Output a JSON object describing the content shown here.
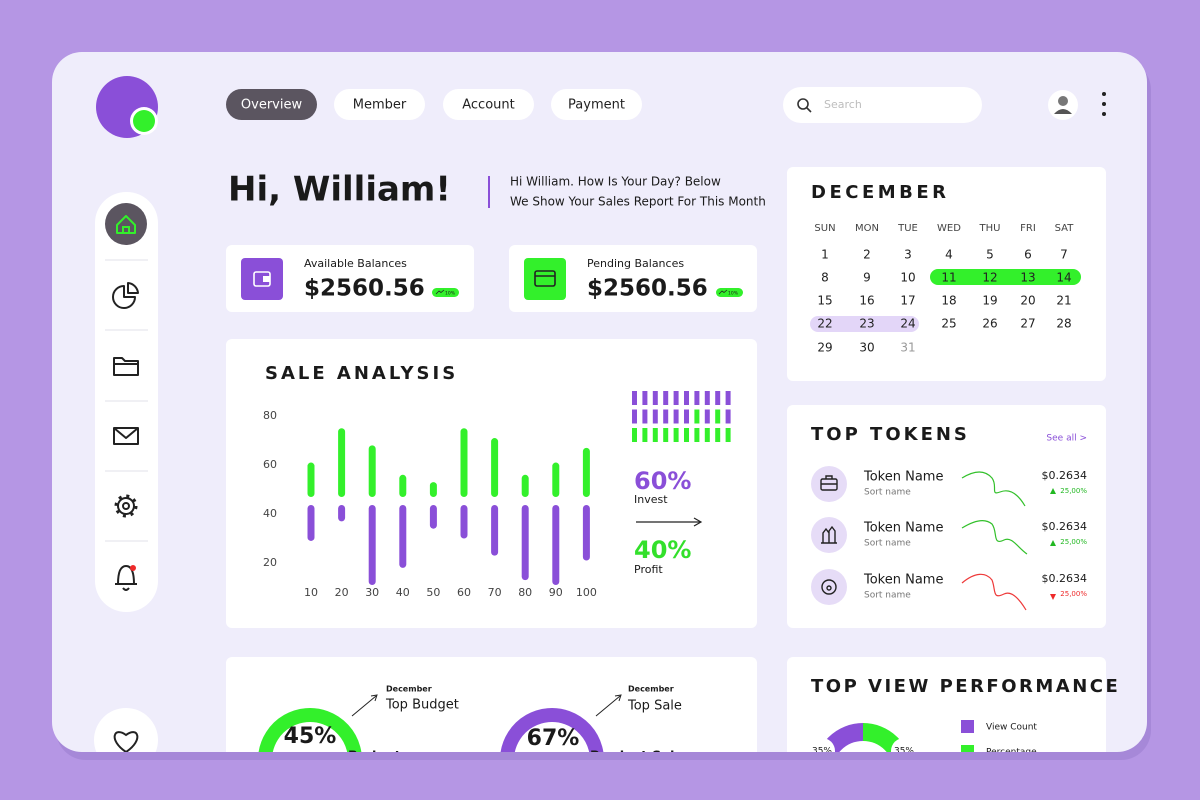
{
  "nav": [
    "Overview",
    "Member",
    "Account",
    "Payment"
  ],
  "search_placeholder": "Search",
  "greeting": "Hi, William!",
  "message": [
    "Hi William. How Is Your Day? Below",
    "We Show Your Sales Report For This Month"
  ],
  "balances": [
    {
      "label": "Available Balances",
      "amount": "$2560.56",
      "badge": "10%"
    },
    {
      "label": "Pending Balances",
      "amount": "$2560.56",
      "badge": "10%"
    }
  ],
  "chart_data": {
    "type": "bar",
    "title": "SALE ANALYSIS",
    "categories": [
      10,
      20,
      30,
      40,
      50,
      60,
      70,
      80,
      90,
      100
    ],
    "series": [
      {
        "color": "#33f02b",
        "values": [
          61,
          75,
          68,
          56,
          53,
          75,
          71,
          56,
          61,
          67
        ]
      },
      {
        "color": "#8a4fd8",
        "values": [
          29,
          37,
          11,
          18,
          34,
          30,
          23,
          13,
          11,
          21
        ]
      }
    ],
    "ylim": [
      10,
      90
    ],
    "yticks": [
      20,
      40,
      60,
      80
    ]
  },
  "split": [
    {
      "value": "60%",
      "label": "Invest"
    },
    {
      "value": "40%",
      "label": "Profit"
    }
  ],
  "calendar": {
    "month": "DECEMBER",
    "weekdays": [
      "SUN",
      "MON",
      "TUE",
      "WED",
      "THU",
      "FRI",
      "SAT"
    ],
    "dates": [
      1,
      2,
      3,
      4,
      5,
      6,
      7,
      8,
      9,
      10,
      11,
      12,
      13,
      14,
      15,
      16,
      17,
      18,
      19,
      20,
      21,
      22,
      23,
      24,
      25,
      26,
      27,
      28,
      29,
      30,
      31
    ]
  },
  "tokens": {
    "title": "TOP TOKENS",
    "see_all": "See all >",
    "items": [
      {
        "name": "Token Name",
        "sort": "Sort name",
        "price": "$0.2634",
        "change": "25,00%"
      },
      {
        "name": "Token Name",
        "sort": "Sort name",
        "price": "$0.2634",
        "change": "25,00%"
      },
      {
        "name": "Token Name",
        "sort": "Sort name",
        "price": "$0.2634",
        "change": "25,00%"
      }
    ]
  },
  "performance": {
    "title": "TOP VIEW PERFORMANCE",
    "legend": [
      "View Count",
      "Percentage"
    ],
    "labels": [
      "35%",
      "35%"
    ]
  },
  "goals": [
    {
      "month": "December",
      "title": "Top Budget",
      "percent": "45%",
      "caption": "Budget"
    },
    {
      "month": "December",
      "title": "Top Sale",
      "percent": "67%",
      "caption": "Product Sale"
    }
  ]
}
